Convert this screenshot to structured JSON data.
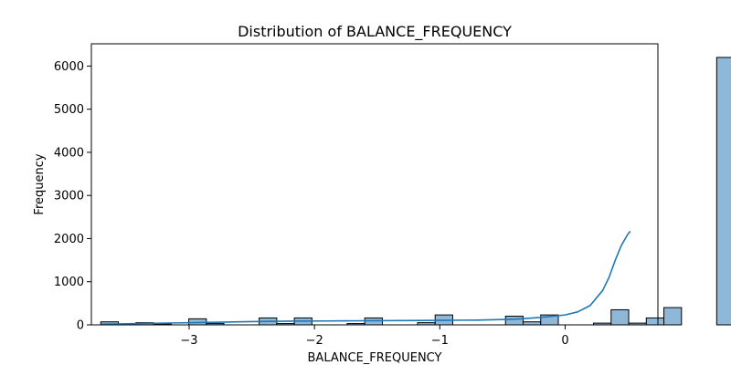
{
  "chart_data": {
    "type": "bar",
    "title": "Distribution of BALANCE_FREQUENCY",
    "xlabel": "BALANCE_FREQUENCY",
    "ylabel": "Frequency",
    "xlim": [
      -3.78,
      0.74
    ],
    "ylim": [
      0,
      6516
    ],
    "xticks": [
      -3,
      -2,
      -1,
      0
    ],
    "xtick_labels": [
      "−3",
      "−2",
      "−1",
      "0"
    ],
    "yticks": [
      0,
      1000,
      2000,
      3000,
      4000,
      5000,
      6000
    ],
    "ytick_labels": [
      "0",
      "1000",
      "2000",
      "3000",
      "4000",
      "5000",
      "6000"
    ],
    "bins": {
      "start": -3.705,
      "width": 0.1404,
      "counts": [
        70,
        0,
        50,
        20,
        0,
        140,
        30,
        0,
        0,
        160,
        30,
        160,
        0,
        0,
        30,
        160,
        0,
        0,
        50,
        230,
        0,
        0,
        0,
        200,
        70,
        230,
        0,
        0,
        40,
        350,
        40,
        160,
        400,
        0,
        0,
        6200
      ]
    },
    "kde": {
      "x": [
        -3.7,
        -3.4,
        -3.1,
        -2.8,
        -2.5,
        -2.2,
        -1.9,
        -1.6,
        -1.3,
        -1.0,
        -0.7,
        -0.4,
        -0.2,
        0.0,
        0.1,
        0.2,
        0.3,
        0.35,
        0.4,
        0.45,
        0.5,
        0.52
      ],
      "y": [
        15,
        30,
        45,
        60,
        75,
        85,
        90,
        95,
        100,
        105,
        110,
        130,
        170,
        230,
        300,
        450,
        800,
        1100,
        1500,
        1850,
        2100,
        2170
      ]
    },
    "colors": {
      "bar_fill": "#8fb8d8",
      "bar_edge": "#000000",
      "kde_line": "#1f77b4"
    },
    "grid": false,
    "legend": "none"
  }
}
